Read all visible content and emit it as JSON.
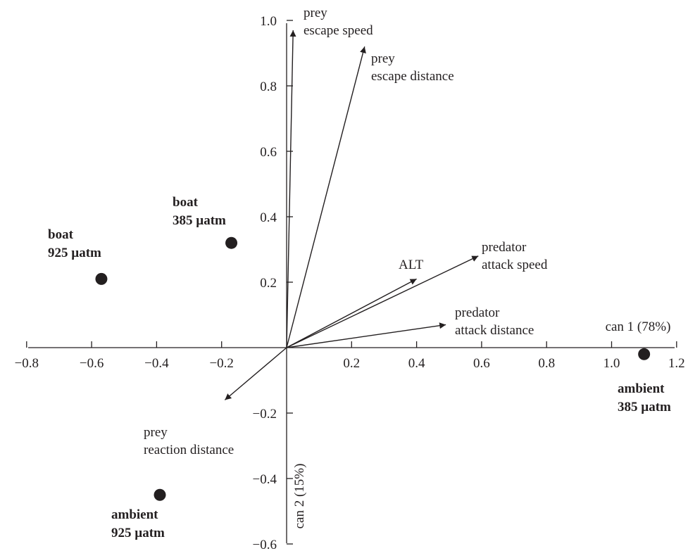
{
  "chart_data": {
    "type": "scatter",
    "title": "",
    "xlabel": "can 1 (78%)",
    "ylabel": "can 2 (15%)",
    "xlim": [
      -0.8,
      1.2
    ],
    "ylim": [
      -0.6,
      1.0
    ],
    "x_ticks": [
      {
        "value": -0.8,
        "label": "−0.8"
      },
      {
        "value": -0.6,
        "label": "−0.6"
      },
      {
        "value": -0.4,
        "label": "−0.4"
      },
      {
        "value": -0.2,
        "label": "−0.2"
      },
      {
        "value": 0.2,
        "label": "0.2"
      },
      {
        "value": 0.4,
        "label": "0.4"
      },
      {
        "value": 0.6,
        "label": "0.6"
      },
      {
        "value": 0.8,
        "label": "0.8"
      },
      {
        "value": 1.0,
        "label": "1.0"
      },
      {
        "value": 1.2,
        "label": "1.2"
      }
    ],
    "y_ticks": [
      {
        "value": 1.0,
        "label": "1.0"
      },
      {
        "value": 0.8,
        "label": "0.8"
      },
      {
        "value": 0.6,
        "label": "0.6"
      },
      {
        "value": 0.4,
        "label": "0.4"
      },
      {
        "value": 0.2,
        "label": "0.2"
      },
      {
        "value": -0.2,
        "label": "−0.2"
      },
      {
        "value": -0.4,
        "label": "−0.4"
      },
      {
        "value": -0.6,
        "label": "−0.6"
      }
    ],
    "group_centroids": [
      {
        "lines": [
          "boat",
          "925 µatm"
        ],
        "x": -0.57,
        "y": 0.21
      },
      {
        "lines": [
          "boat",
          "385 µatm"
        ],
        "x": -0.17,
        "y": 0.32
      },
      {
        "lines": [
          "ambient",
          "925 µatm"
        ],
        "x": -0.39,
        "y": -0.45
      },
      {
        "lines": [
          "ambient",
          "385 µatm"
        ],
        "x": 1.1,
        "y": -0.02
      }
    ],
    "vectors": [
      {
        "lines": [
          "prey",
          "escape speed"
        ],
        "x": 0.02,
        "y": 0.97
      },
      {
        "lines": [
          "prey",
          "escape distance"
        ],
        "x": 0.24,
        "y": 0.92
      },
      {
        "lines": [
          "ALT"
        ],
        "x": 0.4,
        "y": 0.21
      },
      {
        "lines": [
          "predator",
          "attack speed"
        ],
        "x": 0.59,
        "y": 0.28
      },
      {
        "lines": [
          "predator",
          "attack distance"
        ],
        "x": 0.49,
        "y": 0.07
      },
      {
        "lines": [
          "prey",
          "reaction distance"
        ],
        "x": -0.19,
        "y": -0.16
      }
    ],
    "grid": false,
    "legend": "none"
  }
}
